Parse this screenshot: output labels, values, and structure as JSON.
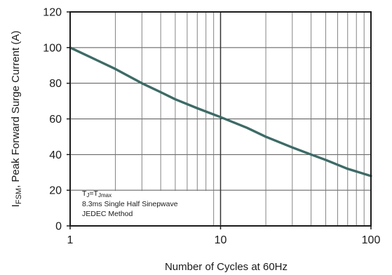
{
  "chart_data": {
    "type": "line",
    "title": "",
    "xlabel": "Number of Cycles at 60Hz",
    "ylabel": {
      "main": "I",
      "sub": "FSM",
      "rest": ", Peak Forward Surge Current (A)"
    },
    "x_scale": "log",
    "xlim": [
      1,
      100
    ],
    "ylim": [
      0,
      120
    ],
    "x_ticks": [
      1,
      10,
      100
    ],
    "y_ticks": [
      0,
      20,
      40,
      60,
      80,
      100,
      120
    ],
    "grid": true,
    "line_color": "#3d6b66",
    "series": [
      {
        "x": [
          1,
          1.5,
          2,
          3,
          4,
          5,
          7,
          10,
          15,
          20,
          30,
          40,
          50,
          70,
          100
        ],
        "y": [
          100,
          93,
          88,
          80,
          75,
          71,
          66,
          61,
          55,
          50,
          44,
          40,
          37,
          32,
          28
        ]
      }
    ],
    "annotation": {
      "line1": "Tⱼ=Tⱼmax",
      "line1_parts": [
        {
          "t": "T",
          "sub": false
        },
        {
          "t": "J",
          "sub": true
        },
        {
          "t": "=T",
          "sub": false
        },
        {
          "t": "Jmax",
          "sub": true
        }
      ],
      "line2": "8.3ms Single Half  Sinepwave",
      "line3": "JEDEC Method"
    }
  }
}
